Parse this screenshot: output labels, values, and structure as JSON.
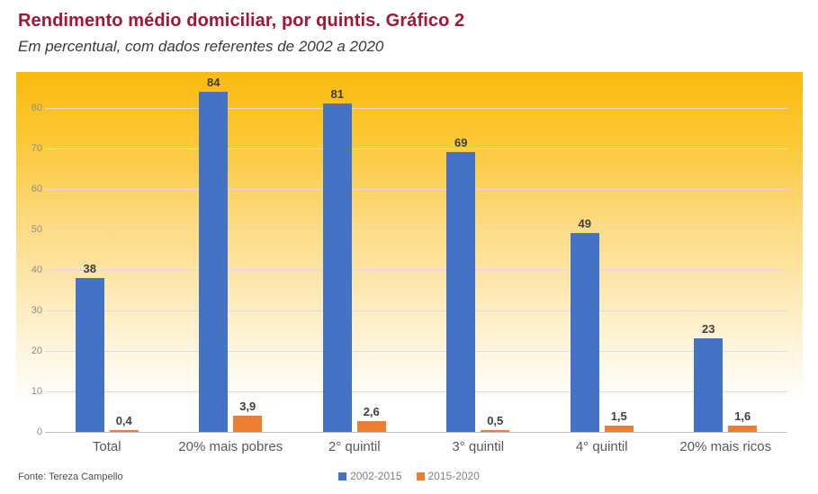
{
  "header": {
    "title": "Rendimento médio domiciliar, por quintis. Gráfico 2",
    "subtitle": "Em percentual, com dados referentes de 2002 a 2020"
  },
  "chart_data": {
    "type": "bar",
    "title": "Rendimento médio domiciliar, por quintis. Gráfico 2",
    "subtitle": "Em percentual, com dados referentes de 2002 a 2020",
    "categories": [
      "Total",
      "20% mais pobres",
      "2° quintil",
      "3° quintil",
      "4° quintil",
      "20% mais ricos"
    ],
    "series": [
      {
        "name": "2002-2015",
        "color": "#4472C4",
        "values": [
          38,
          84,
          81,
          69,
          49,
          23
        ],
        "value_labels": [
          "38",
          "84",
          "81",
          "69",
          "49",
          "23"
        ]
      },
      {
        "name": "2015-2020",
        "color": "#ED7D31",
        "values": [
          0.4,
          3.9,
          2.6,
          0.5,
          1.5,
          1.6
        ],
        "value_labels": [
          "0,4",
          "3,9",
          "2,6",
          "0,5",
          "1,5",
          "1,6"
        ]
      }
    ],
    "xlabel": "",
    "ylabel": "",
    "y_ticks": [
      0,
      10,
      20,
      30,
      40,
      50,
      60,
      70,
      80
    ],
    "ylim": [
      0,
      89
    ],
    "grid": true,
    "legend_position": "bottom",
    "background_gradient": [
      "#FABB10",
      "#FFFFFF"
    ]
  },
  "footer": {
    "source": "Fonte: Tereza Campello"
  },
  "colors": {
    "title": "#A31638",
    "series_blue": "#4472C4",
    "series_orange": "#ED7D31",
    "gridline": "#DCDCDC",
    "axis_line": "#BFBFBF"
  }
}
